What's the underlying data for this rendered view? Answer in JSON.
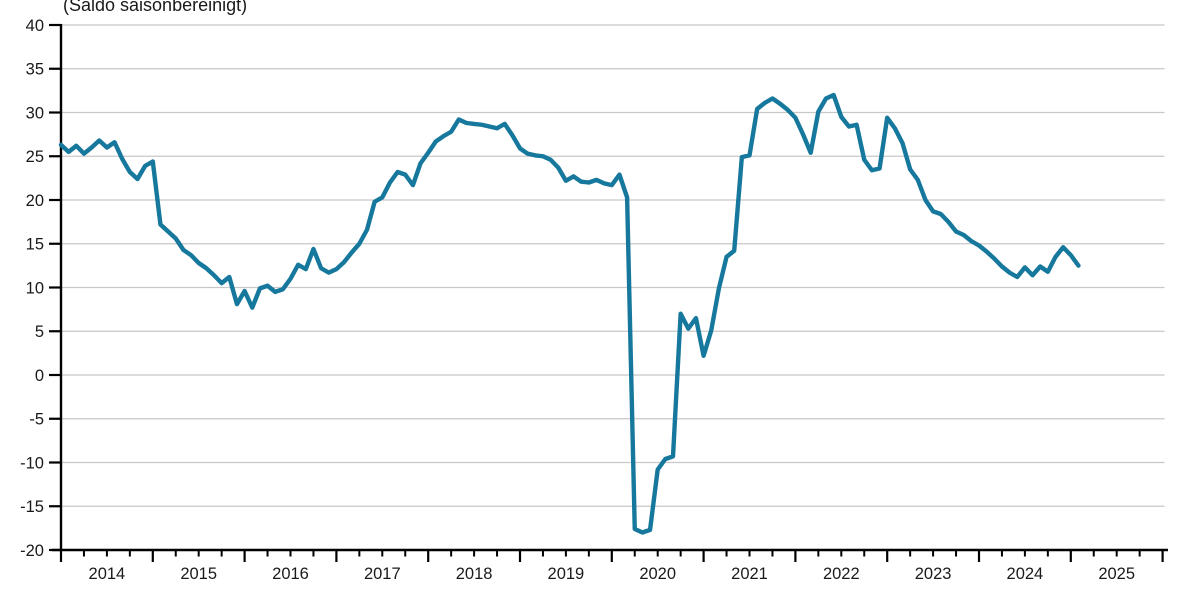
{
  "title": "(Saldo saisonbereinigt)",
  "colors": {
    "line": "#16789c",
    "grid": "#c8c8c8",
    "axis": "#000000",
    "text": "#1a1a1a",
    "background": "#ffffff"
  },
  "chart_data": {
    "type": "line",
    "title": "(Saldo saisonbereinigt)",
    "frequency": "monthly",
    "x_start": "2014-01",
    "x_end": "2025-02",
    "xlabel": "",
    "ylabel": "",
    "ylim": [
      -20,
      40
    ],
    "ytick_step": 5,
    "grid": true,
    "legend_position": "none",
    "yticks": [
      40,
      35,
      30,
      25,
      20,
      15,
      10,
      5,
      0,
      -5,
      -10,
      -15,
      -20
    ],
    "x_year_labels": [
      "2014",
      "2015",
      "2016",
      "2017",
      "2018",
      "2019",
      "2020",
      "2021",
      "2022",
      "2023",
      "2024",
      "2025"
    ],
    "minor_ticks_per_year": 4,
    "values": [
      26.3,
      25.5,
      26.2,
      25.3,
      26.0,
      26.8,
      26.0,
      26.6,
      24.7,
      23.2,
      22.4,
      23.9,
      24.4,
      17.2,
      16.4,
      15.6,
      14.3,
      13.7,
      12.8,
      12.2,
      11.4,
      10.5,
      11.2,
      8.1,
      9.6,
      7.7,
      9.9,
      10.2,
      9.5,
      9.8,
      11.0,
      12.6,
      12.1,
      14.4,
      12.2,
      11.7,
      12.1,
      12.9,
      14.0,
      15.0,
      16.6,
      19.8,
      20.3,
      22.0,
      23.2,
      22.9,
      21.7,
      24.2,
      25.4,
      26.7,
      27.3,
      27.8,
      29.2,
      28.8,
      28.7,
      28.6,
      28.4,
      28.2,
      28.7,
      27.4,
      25.9,
      25.3,
      25.1,
      25.0,
      24.6,
      23.7,
      22.2,
      22.7,
      22.1,
      22.0,
      22.3,
      21.9,
      21.7,
      22.9,
      20.3,
      -17.6,
      -18.0,
      -17.7,
      -10.8,
      -9.6,
      -9.3,
      7.0,
      5.3,
      6.5,
      2.2,
      5.1,
      9.9,
      13.5,
      14.2,
      24.9,
      25.1,
      30.4,
      31.1,
      31.6,
      31.0,
      30.3,
      29.4,
      27.5,
      25.4,
      30.1,
      31.6,
      32.0,
      29.5,
      28.4,
      28.6,
      24.6,
      23.4,
      23.6,
      29.4,
      28.2,
      26.5,
      23.5,
      22.3,
      20.0,
      18.7,
      18.4,
      17.5,
      16.4,
      16.0,
      15.3,
      14.8,
      14.1,
      13.3,
      12.4,
      11.7,
      11.2,
      12.3,
      11.4,
      12.4,
      11.8,
      13.5,
      14.6,
      13.7,
      12.5
    ]
  }
}
